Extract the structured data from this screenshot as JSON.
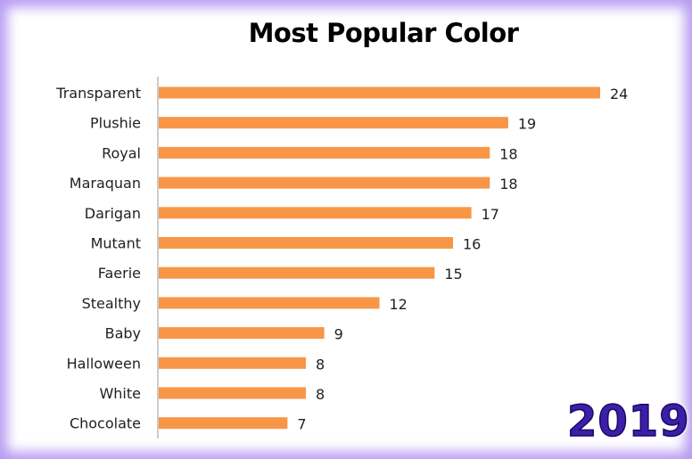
{
  "chart_data": {
    "type": "bar",
    "orientation": "horizontal",
    "title": "Most Popular Color",
    "xlabel": "",
    "ylabel": "",
    "categories": [
      "Transparent",
      "Plushie",
      "Royal",
      "Maraquan",
      "Darigan",
      "Mutant",
      "Faerie",
      "Stealthy",
      "Baby",
      "Halloween",
      "White",
      "Chocolate"
    ],
    "values": [
      24,
      19,
      18,
      18,
      17,
      16,
      15,
      12,
      9,
      8,
      8,
      7
    ],
    "xlim": [
      0,
      24
    ],
    "grid": false,
    "legend": "none",
    "bar_color": "#f79646",
    "data_labels": true
  },
  "year_stamp": "2019",
  "colors": {
    "frame_glow": "#b79cf2",
    "stamp": "#3b1fa8"
  }
}
